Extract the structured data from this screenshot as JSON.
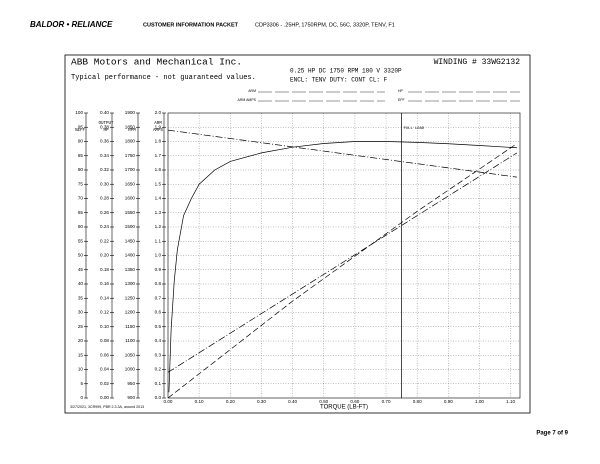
{
  "header": {
    "brand": "BALDOR • RELIANCE",
    "title": "CUSTOMER INFORMATION PACKET",
    "subtitle": "CDP3306 - .25HP, 1750RPM, DC, 56C, 3320P, TENV, F1"
  },
  "footer": {
    "page": "Page 7 of 9"
  },
  "chart_data": {
    "type": "line",
    "company": "ABB Motors and Mechanical Inc.",
    "winding": "WINDING # 33WG2132",
    "note": "Typical performance - not guaranteed values.",
    "specs": [
      "0.25 HP  DC  1750 RPM  180 V  3320P",
      "ENCL: TENV  DUTY: CONT  CL: F"
    ],
    "fields": [
      "ARM",
      "ARM AMPS",
      "HP",
      "EFF"
    ],
    "stamp": "3/27/2021, 3CR999, PBR 2.3.3A, around 2013",
    "xlabel": "TORQUE (LB-FT)",
    "xlim": [
      0,
      1.13
    ],
    "xticks": [
      {
        "value": 0,
        "label": "0.00"
      },
      {
        "value": 0.1,
        "label": "0.10"
      },
      {
        "value": 0.2,
        "label": "0.20"
      },
      {
        "value": 0.3,
        "label": "0.30"
      },
      {
        "value": 0.4,
        "label": "0.40"
      },
      {
        "value": 0.5,
        "label": "0.50"
      },
      {
        "value": 0.6,
        "label": "0.60"
      },
      {
        "value": 0.7,
        "label": "0.70"
      },
      {
        "value": 0.8,
        "label": "0.80"
      },
      {
        "value": 0.9,
        "label": "0.90"
      },
      {
        "value": 1,
        "label": "1.00"
      },
      {
        "value": 1.1,
        "label": "1.10"
      }
    ],
    "ylabel": [
      "%EFF"
    ],
    "ylim": [
      0,
      100
    ],
    "yticks": [
      0,
      5,
      10,
      15,
      20,
      25,
      30,
      35,
      40,
      45,
      50,
      55,
      60,
      65,
      70,
      75,
      80,
      85,
      90,
      95,
      100
    ],
    "y2label": [
      "OUTPUT",
      "HP"
    ],
    "y2lim": [
      0,
      0.4
    ],
    "y2ticks": [
      {
        "value": 0,
        "label": "0.00"
      },
      0.02,
      0.04,
      0.06,
      0.08,
      {
        "value": 0.1,
        "label": "0.10"
      },
      0.12,
      0.14,
      0.16,
      0.18,
      {
        "value": 0.2,
        "label": "0.20"
      },
      0.22,
      0.24,
      0.26,
      0.28,
      {
        "value": 0.3,
        "label": "0.30"
      },
      0.32,
      0.34,
      0.36,
      0.38,
      {
        "value": 0.4,
        "label": "0.40"
      }
    ],
    "y3label": [
      "RPM"
    ],
    "y3lim": [
      900,
      1900
    ],
    "y3ticks": [
      900,
      950,
      1000,
      1050,
      1100,
      1150,
      1200,
      1250,
      1300,
      1350,
      1400,
      1450,
      1500,
      1550,
      1600,
      1650,
      1700,
      1750,
      1800,
      1850,
      1900
    ],
    "y4label": [
      "ARM",
      "AMPS"
    ],
    "y4lim": [
      0,
      2
    ],
    "y4ticks": [
      {
        "value": 0,
        "label": "0.0"
      },
      0.1,
      0.2,
      0.3,
      0.4,
      0.5,
      0.6,
      0.7,
      0.8,
      0.9,
      {
        "value": 1,
        "label": "1.0"
      },
      1.1,
      1.2,
      1.3,
      1.4,
      1.5,
      1.6,
      1.7,
      1.8,
      1.9,
      {
        "value": 2,
        "label": "2.0"
      }
    ],
    "grid": true,
    "full_load": {
      "x": 0.75,
      "label": "FULL LOAD"
    },
    "series": [
      {
        "axis": "y",
        "dash": "solid",
        "color": "#000000",
        "x": [
          0.003,
          0.01,
          0.02,
          0.03,
          0.05,
          0.075,
          0.1,
          0.15,
          0.2,
          0.3,
          0.4,
          0.5,
          0.6,
          0.7,
          0.8,
          0.9,
          1.0,
          1.12
        ],
        "values": [
          2,
          24,
          41,
          52,
          64,
          70,
          75,
          80,
          83,
          86,
          88,
          89.3,
          90,
          90,
          89.7,
          89.2,
          88.6,
          87.8
        ]
      },
      {
        "axis": "y3",
        "dash": "dashdot",
        "color": "#000000",
        "x": [
          0,
          1.12
        ],
        "values": [
          1840,
          1675
        ]
      },
      {
        "axis": "y4",
        "dash": "dashdot",
        "color": "#000000",
        "x": [
          0,
          1.12
        ],
        "values": [
          0.18,
          1.72
        ]
      },
      {
        "axis": "y2",
        "dash": "dash",
        "color": "#000000",
        "x": [
          0,
          0.4,
          0.8,
          1.12
        ],
        "values": [
          0,
          0.136,
          0.262,
          0.357
        ]
      }
    ]
  }
}
